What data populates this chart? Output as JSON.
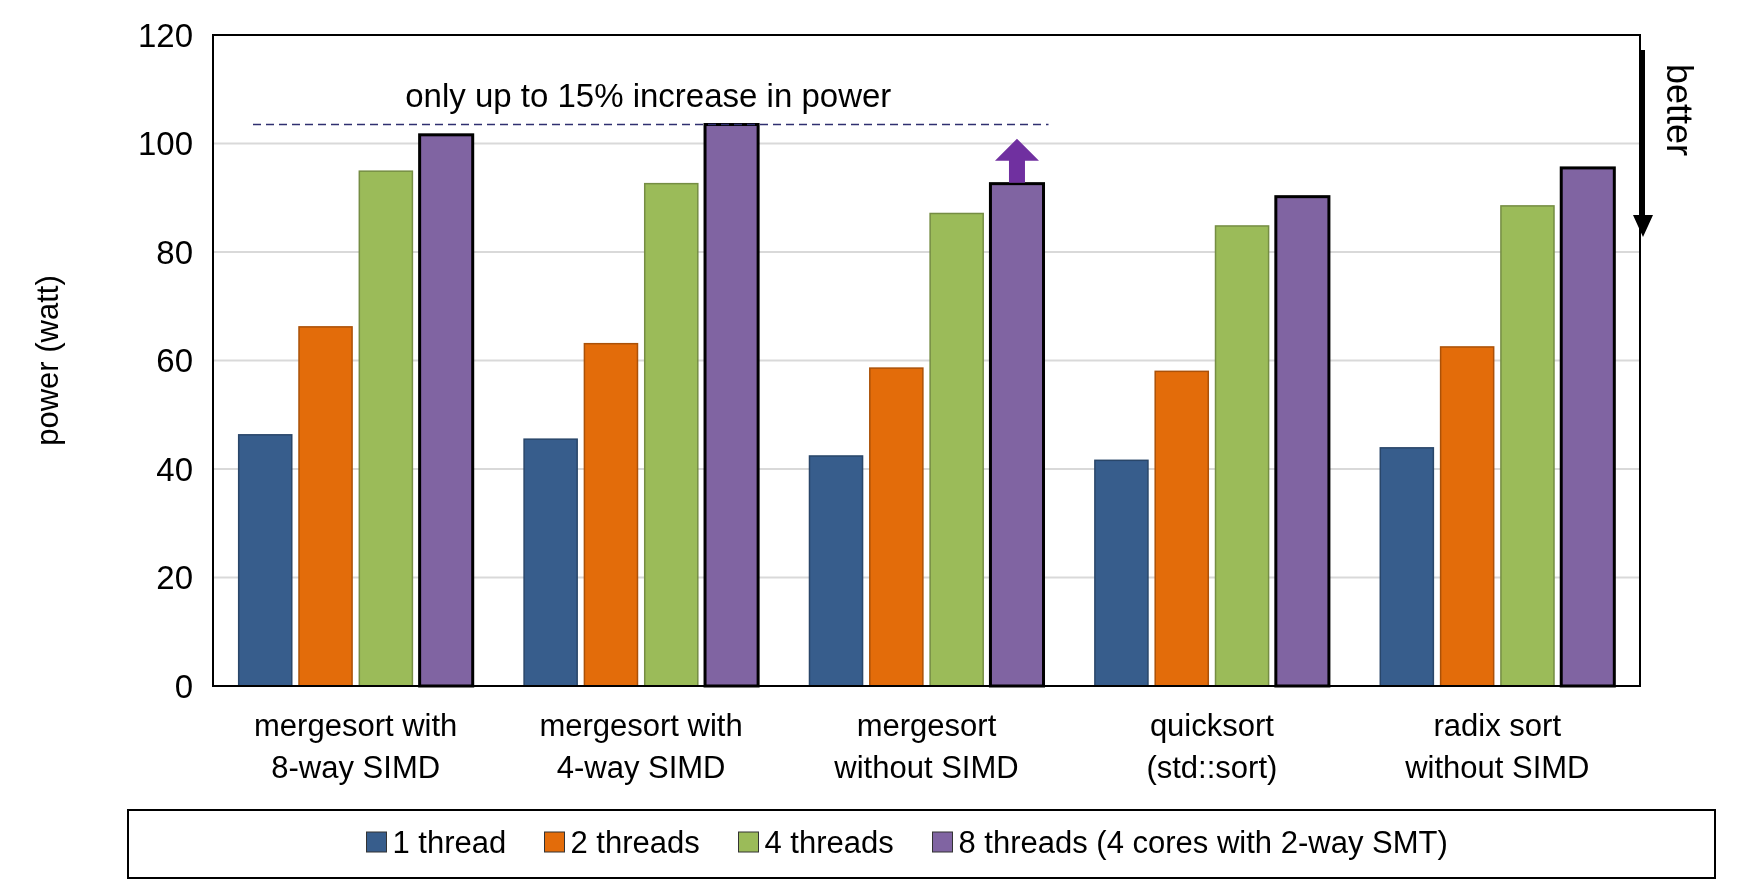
{
  "chart_data": {
    "type": "bar",
    "ylabel": "power (watt)",
    "categories": [
      "mergesort with\n8-way SIMD",
      "mergesort with\n4-way SIMD",
      "mergesort\nwithout SIMD",
      "quicksort\n(std::sort)",
      "radix sort\nwithout SIMD"
    ],
    "series": [
      {
        "name": "1 thread",
        "color": "#375d8c",
        "values": [
          46.3,
          45.5,
          42.4,
          41.6,
          43.9
        ]
      },
      {
        "name": "2 threads",
        "color": "#e36c0a",
        "values": [
          66.2,
          63.1,
          58.6,
          58,
          62.5
        ]
      },
      {
        "name": "4 threads",
        "color": "#9bbb59",
        "values": [
          94.9,
          92.6,
          87.1,
          84.8,
          88.5
        ]
      },
      {
        "name": "8 threads (4 cores with 2-way SMT)",
        "color": "#8064a2",
        "values": [
          101.6,
          103.5,
          92.6,
          90.2,
          95.5
        ]
      }
    ],
    "ylim": [
      0,
      120
    ],
    "yticks": [
      0,
      20,
      40,
      60,
      80,
      100,
      120
    ],
    "grid": "y",
    "legend": "bottom",
    "ref_lines": [
      {
        "axis": "y",
        "value": 103.5,
        "label": "only up to 15% increase in power",
        "line_style": "dashed",
        "color": "#2f2f6f"
      }
    ],
    "annotations": [
      "better"
    ]
  }
}
